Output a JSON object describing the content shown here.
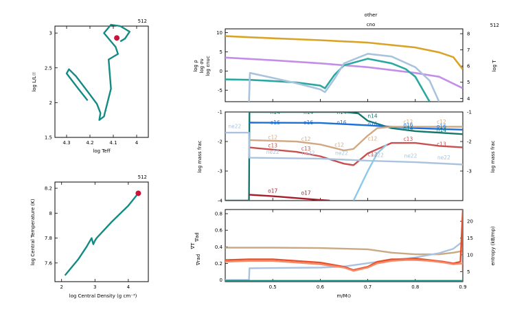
{
  "chart_data": [
    {
      "type": "line",
      "tag": "512",
      "xlabel": "log Teff",
      "ylabel": "log L/L☉",
      "xlim": [
        4.35,
        3.95
      ],
      "ylim": [
        1.5,
        3.1
      ],
      "xticks": [
        "4.3",
        "4.2",
        "4.1",
        "4"
      ],
      "yticks": [
        "1.5",
        "2",
        "2.5",
        "3"
      ],
      "series": [
        {
          "color": "#138a83",
          "x": [
            4.21,
            4.25,
            4.3,
            4.29,
            4.26,
            4.21,
            4.17,
            4.155,
            4.16,
            4.14,
            4.11,
            4.12,
            4.08,
            4.09,
            4.14,
            4.11,
            4.07,
            4.03,
            4.05,
            4.07
          ],
          "y": [
            2.03,
            2.2,
            2.42,
            2.48,
            2.38,
            2.16,
            1.98,
            1.85,
            1.75,
            1.8,
            2.2,
            2.62,
            2.7,
            2.8,
            3.0,
            3.12,
            3.1,
            3.02,
            2.92,
            2.88
          ]
        }
      ],
      "marker": {
        "x": 4.085,
        "y": 2.93,
        "color": "#c8143c"
      }
    },
    {
      "type": "line",
      "tag": "512",
      "xlabel": "log Central Density (g cm⁻³)",
      "ylabel": "log Central Temperature (K)",
      "xlim": [
        1.8,
        4.6
      ],
      "ylim": [
        7.45,
        8.25
      ],
      "xticks": [
        "2",
        "3",
        "4"
      ],
      "yticks": [
        "7.6",
        "7.8",
        "8",
        "8.2"
      ],
      "series": [
        {
          "color": "#138a83",
          "x": [
            2.1,
            2.5,
            2.75,
            2.9,
            2.95,
            3.0,
            3.05,
            3.5,
            4.0,
            4.3
          ],
          "y": [
            7.5,
            7.63,
            7.73,
            7.8,
            7.75,
            7.78,
            7.8,
            7.93,
            8.06,
            8.16
          ]
        }
      ],
      "marker": {
        "x": 4.3,
        "y": 8.16,
        "color": "#c8143c"
      }
    },
    {
      "type": "line",
      "tags": [
        "other",
        "cno",
        "512"
      ],
      "xlim": [
        0.4,
        0.9
      ],
      "ylim": [
        -8,
        11
      ],
      "y2lim": [
        3.8,
        8.3
      ],
      "yticks": [
        "-5",
        "0",
        "5",
        "10"
      ],
      "y2ticks": [
        "4",
        "5",
        "6",
        "7",
        "8"
      ],
      "ylabels": [
        "log ρ",
        "log σν",
        "log εnuc"
      ],
      "y2label": "log T",
      "series": [
        {
          "name": "log ρ",
          "color": "#c38ee8",
          "x": [
            0.4,
            0.5,
            0.6,
            0.7,
            0.8,
            0.85,
            0.9
          ],
          "y": [
            3.5,
            2.8,
            2.0,
            1.0,
            -0.5,
            -1.5,
            -4.5
          ]
        },
        {
          "name": "log T",
          "color": "#d9a326",
          "axis": "right",
          "x": [
            0.4,
            0.5,
            0.6,
            0.7,
            0.8,
            0.85,
            0.88,
            0.9
          ],
          "y": [
            7.85,
            7.72,
            7.6,
            7.45,
            7.15,
            6.85,
            6.55,
            5.8
          ]
        },
        {
          "name": "log εnuc",
          "color": "#2aa8a0",
          "x": [
            0.4,
            0.45,
            0.5,
            0.55,
            0.6,
            0.61,
            0.63,
            0.65,
            0.7,
            0.75,
            0.78,
            0.8,
            0.83
          ],
          "y": [
            -2.2,
            -2.3,
            -2.6,
            -3.0,
            -3.8,
            -4.5,
            -1.0,
            1.5,
            3.2,
            2.0,
            0.5,
            -1.5,
            -8.0
          ]
        },
        {
          "name": "log σν",
          "color": "#a9c3df",
          "x": [
            0.45,
            0.452,
            0.5,
            0.55,
            0.6,
            0.61,
            0.63,
            0.65,
            0.7,
            0.75,
            0.8,
            0.83,
            0.85
          ],
          "y": [
            -8.0,
            -0.5,
            -1.8,
            -3.2,
            -4.8,
            -5.5,
            -2.0,
            2.0,
            4.5,
            3.8,
            1.0,
            -2.5,
            -8.0
          ]
        }
      ]
    },
    {
      "type": "line",
      "xlim": [
        0.4,
        0.9
      ],
      "ylim": [
        -4,
        -1
      ],
      "ylabel": "log mass frac",
      "y2label": "log mass frac",
      "yticks": [
        "-4",
        "-3",
        "-2",
        "-1"
      ],
      "y2ticks": [
        "-3",
        "-2",
        "-1"
      ],
      "series": [
        {
          "name": "n14",
          "color": "#13776f",
          "x": [
            0.4,
            0.45,
            0.451,
            0.6,
            0.65,
            0.68,
            0.7,
            0.75,
            0.8,
            0.9
          ],
          "y": [
            -4.0,
            -4.0,
            -1.0,
            -1.0,
            -1.0,
            -1.05,
            -1.3,
            -1.55,
            -1.65,
            -1.75
          ]
        },
        {
          "name": "o16",
          "color": "#1a6fd9",
          "x": [
            0.45,
            0.6,
            0.7,
            0.8,
            0.9
          ],
          "y": [
            -1.36,
            -1.37,
            -1.45,
            -1.55,
            -1.6
          ]
        },
        {
          "name": "c12",
          "color": "#d0a984",
          "x": [
            0.45,
            0.55,
            0.6,
            0.65,
            0.67,
            0.7,
            0.72,
            0.75,
            0.8,
            0.9
          ],
          "y": [
            -1.95,
            -2.0,
            -2.1,
            -2.3,
            -2.25,
            -1.8,
            -1.55,
            -1.5,
            -1.5,
            -1.5
          ]
        },
        {
          "name": "c13",
          "color": "#c94f4f",
          "x": [
            0.45,
            0.55,
            0.6,
            0.65,
            0.67,
            0.7,
            0.75,
            0.8,
            0.85,
            0.9
          ],
          "y": [
            -2.2,
            -2.35,
            -2.5,
            -2.75,
            -2.8,
            -2.4,
            -2.05,
            -2.05,
            -2.15,
            -2.2
          ]
        },
        {
          "name": "ne22",
          "color": "#a9c3df",
          "x": [
            0.4,
            0.45,
            0.451,
            0.6,
            0.7,
            0.8,
            0.9
          ],
          "y": [
            -1.7,
            -1.7,
            -2.55,
            -2.58,
            -2.65,
            -2.7,
            -2.78
          ]
        },
        {
          "name": "o17",
          "color": "#a81c2a",
          "x": [
            0.45,
            0.5,
            0.6,
            0.62
          ],
          "y": [
            -3.8,
            -3.85,
            -3.98,
            -4.0
          ]
        },
        {
          "name": "light-blue-rise",
          "color": "#8cc8ec",
          "x": [
            0.67,
            0.7,
            0.72,
            0.74
          ],
          "y": [
            -4.0,
            -3.0,
            -2.4,
            -2.1
          ]
        }
      ],
      "labels": [
        {
          "text": "n14",
          "x": 0.505,
          "y": -1.07,
          "color": "#13776f"
        },
        {
          "text": "n14",
          "x": 0.575,
          "y": -1.07,
          "color": "#13776f"
        },
        {
          "text": "n14",
          "x": 0.645,
          "y": -1.07,
          "color": "#13776f"
        },
        {
          "text": "n14",
          "x": 0.71,
          "y": -1.2,
          "color": "#13776f"
        },
        {
          "text": "o16",
          "x": 0.505,
          "y": -1.42,
          "color": "#1a6fd9"
        },
        {
          "text": "o16",
          "x": 0.575,
          "y": -1.42,
          "color": "#1a6fd9"
        },
        {
          "text": "o16",
          "x": 0.645,
          "y": -1.42,
          "color": "#1a6fd9"
        },
        {
          "text": "o16",
          "x": 0.71,
          "y": -1.47,
          "color": "#1a6fd9"
        },
        {
          "text": "o16",
          "x": 0.785,
          "y": -1.5,
          "color": "#1a6fd9"
        },
        {
          "text": "o16",
          "x": 0.855,
          "y": -1.55,
          "color": "#1a6fd9"
        },
        {
          "text": "ne22",
          "x": 0.42,
          "y": -1.55,
          "color": "#a9c3df"
        },
        {
          "text": "n14",
          "x": 0.785,
          "y": -1.62,
          "color": "#13776f"
        },
        {
          "text": "n14",
          "x": 0.855,
          "y": -1.68,
          "color": "#13776f"
        },
        {
          "text": "c12",
          "x": 0.5,
          "y": -1.92,
          "color": "#d0a984"
        },
        {
          "text": "c12",
          "x": 0.57,
          "y": -1.98,
          "color": "#d0a984"
        },
        {
          "text": "c12",
          "x": 0.64,
          "y": -2.18,
          "color": "#d0a984"
        },
        {
          "text": "c12",
          "x": 0.71,
          "y": -1.97,
          "color": "#d0a984"
        },
        {
          "text": "c12",
          "x": 0.785,
          "y": -1.4,
          "color": "#d0a984"
        },
        {
          "text": "c12",
          "x": 0.855,
          "y": -1.4,
          "color": "#d0a984"
        },
        {
          "text": "c13",
          "x": 0.5,
          "y": -2.2,
          "color": "#c94f4f"
        },
        {
          "text": "c13",
          "x": 0.57,
          "y": -2.3,
          "color": "#c94f4f"
        },
        {
          "text": "c13",
          "x": 0.785,
          "y": -1.98,
          "color": "#c94f4f"
        },
        {
          "text": "c13",
          "x": 0.71,
          "y": -2.5,
          "color": "#c94f4f"
        },
        {
          "text": "c13",
          "x": 0.855,
          "y": -2.15,
          "color": "#c94f4f"
        },
        {
          "text": "ne22",
          "x": 0.5,
          "y": -2.42,
          "color": "#a9c3df"
        },
        {
          "text": "ne22",
          "x": 0.575,
          "y": -2.45,
          "color": "#a9c3df"
        },
        {
          "text": "ne22",
          "x": 0.645,
          "y": -2.45,
          "color": "#a9c3df"
        },
        {
          "text": "ne22",
          "x": 0.72,
          "y": -2.52,
          "color": "#a9c3df"
        },
        {
          "text": "ne22",
          "x": 0.79,
          "y": -2.55,
          "color": "#a9c3df"
        },
        {
          "text": "ne22",
          "x": 0.86,
          "y": -2.6,
          "color": "#a9c3df"
        },
        {
          "text": "o17",
          "x": 0.5,
          "y": -3.73,
          "color": "#a81c2a"
        },
        {
          "text": "o17",
          "x": 0.57,
          "y": -3.8,
          "color": "#a81c2a"
        }
      ]
    },
    {
      "type": "line",
      "xlim": [
        0.4,
        0.9
      ],
      "ylim": [
        -0.02,
        0.85
      ],
      "y2lim": [
        2.0,
        23.5
      ],
      "xlabel": "m/M⊙",
      "xticks": [
        "0.5",
        "0.6",
        "0.7",
        "0.8",
        "0.9"
      ],
      "yticks": [
        "0",
        "0.2",
        "0.4",
        "0.6",
        "0.8"
      ],
      "y2ticks": [
        "5",
        "10",
        "15",
        "20"
      ],
      "ylabels": [
        "∇ad",
        "∇T",
        "∇rad"
      ],
      "y2label": "entropy (kB/mp)",
      "series": [
        {
          "name": "∇ad",
          "color": "#c9a882",
          "x": [
            0.4,
            0.5,
            0.6,
            0.7,
            0.75,
            0.8,
            0.85,
            0.88,
            0.9
          ],
          "y": [
            0.39,
            0.39,
            0.385,
            0.37,
            0.33,
            0.31,
            0.31,
            0.33,
            0.35
          ]
        },
        {
          "name": "entropy",
          "color": "#a9c3df",
          "axis": "right",
          "x": [
            0.4,
            0.45,
            0.451,
            0.6,
            0.65,
            0.7,
            0.75,
            0.8,
            0.85,
            0.88,
            0.9
          ],
          "y": [
            2.5,
            2.5,
            6.0,
            6.2,
            6.5,
            7.5,
            8.5,
            9.2,
            10.5,
            11.8,
            14.0
          ]
        },
        {
          "name": "∇rad",
          "color": "#e8502a",
          "x": [
            0.4,
            0.45,
            0.5,
            0.55,
            0.6,
            0.65,
            0.67,
            0.7,
            0.72,
            0.75,
            0.78,
            0.8,
            0.83,
            0.86,
            0.88,
            0.895,
            0.9,
            0.9
          ],
          "y": [
            0.24,
            0.25,
            0.25,
            0.23,
            0.21,
            0.16,
            0.12,
            0.16,
            0.22,
            0.25,
            0.25,
            0.26,
            0.24,
            0.22,
            0.2,
            0.22,
            0.85,
            0.1
          ]
        },
        {
          "name": "∇T",
          "color": "#f28c6a",
          "x": [
            0.4,
            0.45,
            0.5,
            0.55,
            0.6,
            0.65,
            0.67,
            0.7,
            0.72,
            0.75,
            0.78,
            0.8,
            0.83,
            0.86,
            0.88,
            0.9
          ],
          "y": [
            0.22,
            0.23,
            0.23,
            0.21,
            0.19,
            0.15,
            0.11,
            0.15,
            0.2,
            0.23,
            0.24,
            0.24,
            0.23,
            0.21,
            0.19,
            0.2
          ]
        },
        {
          "name": "bottom-green",
          "color": "#138a83",
          "x": [
            0.4,
            0.9
          ],
          "y": [
            -0.01,
            -0.01
          ]
        }
      ]
    }
  ]
}
